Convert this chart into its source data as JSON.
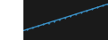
{
  "x_start": 0,
  "x_end": 20,
  "y_start": 1.0,
  "y_end": 18.0,
  "line_color": "#3a8fc4",
  "line_width": 1.0,
  "background_color": "#1a1a1a",
  "plot_bg_color": "#1a1a1a",
  "legend_box_color": "#ffffff",
  "ylim": [
    0,
    20
  ],
  "xlim": [
    0,
    20
  ],
  "marker_size": 1.5
}
